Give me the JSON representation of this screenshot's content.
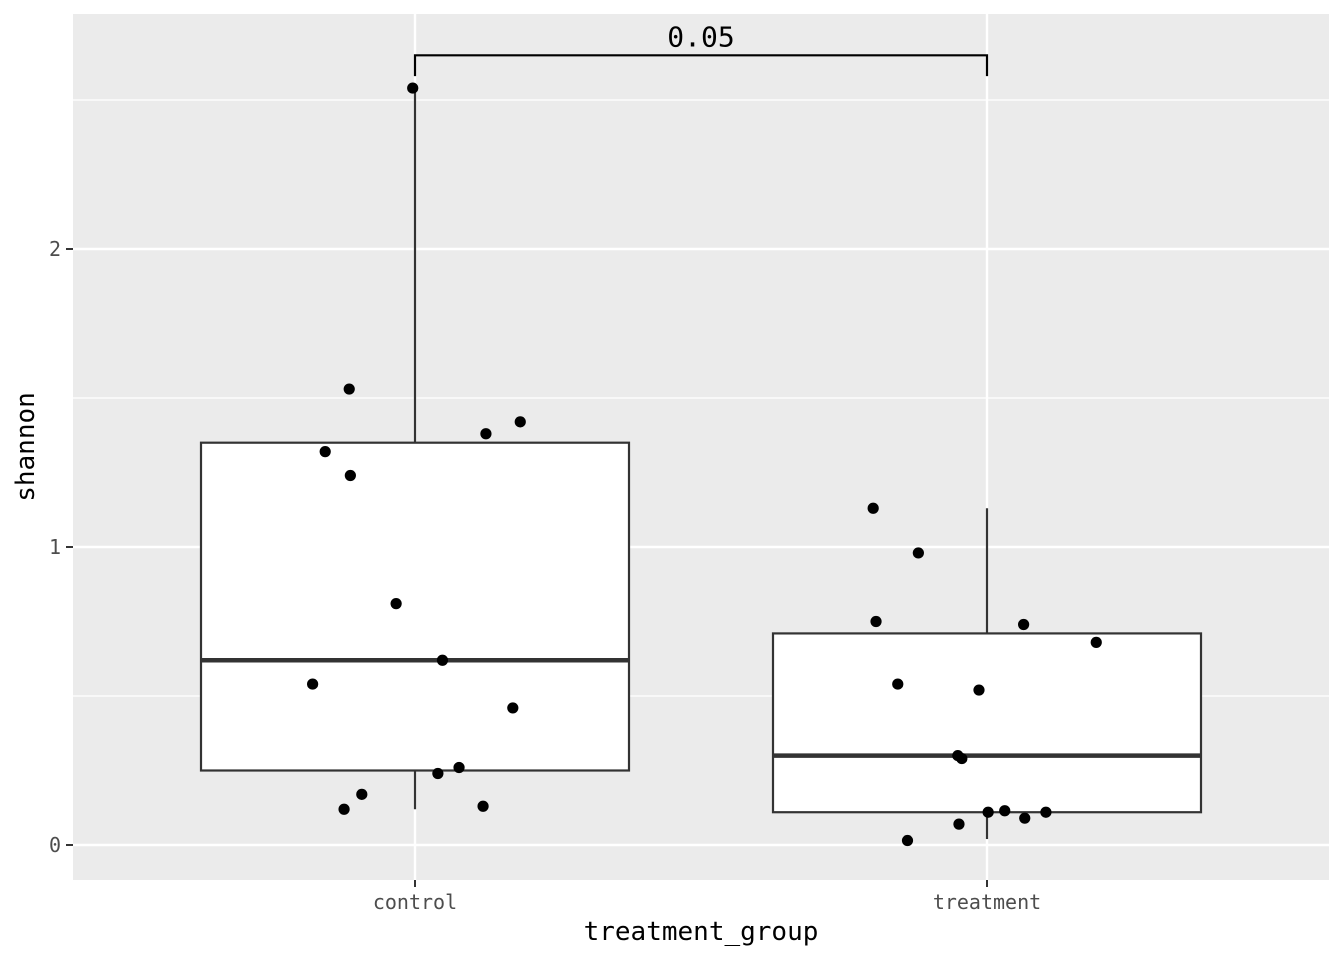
{
  "chart_data": {
    "type": "box",
    "title": "",
    "xlabel": "treatment_group",
    "ylabel": "shannon",
    "categories": [
      "control",
      "treatment"
    ],
    "y_ticks": [
      0,
      1,
      2
    ],
    "y_tick_labels": [
      "0",
      "1",
      "2"
    ],
    "ylim": [
      -0.12,
      2.78
    ],
    "grid": true,
    "legend": "none",
    "panel_background": "#ebebeb",
    "grid_color": "#ffffff",
    "box_fill": "#ffffff",
    "box_stroke": "#333333",
    "point_color": "#000000",
    "boxes": [
      {
        "category": "control",
        "whisker_low": 0.12,
        "q1": 0.25,
        "median": 0.62,
        "q3": 1.35,
        "whisker_high": 2.54
      },
      {
        "category": "treatment",
        "whisker_low": 0.02,
        "q1": 0.11,
        "median": 0.3,
        "q3": 0.71,
        "whisker_high": 1.13
      }
    ],
    "points": [
      {
        "category": "control",
        "jitter": -0.004,
        "y": 2.54
      },
      {
        "category": "control",
        "jitter": -0.115,
        "y": 1.53
      },
      {
        "category": "control",
        "jitter": 0.184,
        "y": 1.42
      },
      {
        "category": "control",
        "jitter": 0.124,
        "y": 1.38
      },
      {
        "category": "control",
        "jitter": -0.157,
        "y": 1.32
      },
      {
        "category": "control",
        "jitter": -0.113,
        "y": 1.24
      },
      {
        "category": "control",
        "jitter": -0.033,
        "y": 0.81
      },
      {
        "category": "control",
        "jitter": 0.048,
        "y": 0.62
      },
      {
        "category": "control",
        "jitter": -0.179,
        "y": 0.54
      },
      {
        "category": "control",
        "jitter": 0.171,
        "y": 0.46
      },
      {
        "category": "control",
        "jitter": 0.077,
        "y": 0.26
      },
      {
        "category": "control",
        "jitter": 0.04,
        "y": 0.24
      },
      {
        "category": "control",
        "jitter": -0.093,
        "y": 0.17
      },
      {
        "category": "control",
        "jitter": 0.119,
        "y": 0.13
      },
      {
        "category": "control",
        "jitter": -0.124,
        "y": 0.12
      },
      {
        "category": "treatment",
        "jitter": -0.199,
        "y": 1.13
      },
      {
        "category": "treatment",
        "jitter": -0.12,
        "y": 0.98
      },
      {
        "category": "treatment",
        "jitter": -0.194,
        "y": 0.75
      },
      {
        "category": "treatment",
        "jitter": 0.064,
        "y": 0.74
      },
      {
        "category": "treatment",
        "jitter": 0.191,
        "y": 0.68
      },
      {
        "category": "treatment",
        "jitter": -0.156,
        "y": 0.54
      },
      {
        "category": "treatment",
        "jitter": -0.014,
        "y": 0.52
      },
      {
        "category": "treatment",
        "jitter": -0.051,
        "y": 0.3
      },
      {
        "category": "treatment",
        "jitter": -0.044,
        "y": 0.29
      },
      {
        "category": "treatment",
        "jitter": 0.002,
        "y": 0.11
      },
      {
        "category": "treatment",
        "jitter": 0.031,
        "y": 0.115
      },
      {
        "category": "treatment",
        "jitter": 0.103,
        "y": 0.11
      },
      {
        "category": "treatment",
        "jitter": 0.066,
        "y": 0.09
      },
      {
        "category": "treatment",
        "jitter": -0.049,
        "y": 0.07
      },
      {
        "category": "treatment",
        "jitter": -0.139,
        "y": 0.015
      }
    ],
    "comparison": {
      "groups": [
        "control",
        "treatment"
      ],
      "label": "0.05",
      "bracket_y": 2.65,
      "drop_y": 2.58
    }
  }
}
